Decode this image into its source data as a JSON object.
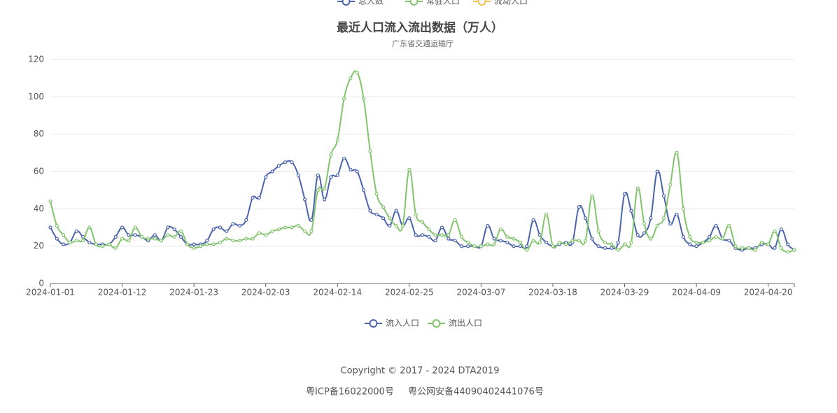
{
  "top_legend": {
    "items": [
      {
        "name": "总人数",
        "color": "#4b64ad"
      },
      {
        "name": "常驻人口",
        "color": "#82c56c"
      },
      {
        "name": "流动人口",
        "color": "#f2c14e"
      }
    ]
  },
  "chart_data": {
    "type": "line",
    "title": "最近人口流入流出数据（万人）",
    "subtitle": "广东省交通运输厅",
    "categories": [
      "2024-01-01",
      null,
      null,
      null,
      null,
      null,
      null,
      null,
      null,
      null,
      null,
      "2024-01-12",
      null,
      null,
      null,
      null,
      null,
      null,
      null,
      null,
      null,
      null,
      "2024-01-23",
      null,
      null,
      null,
      null,
      null,
      null,
      null,
      null,
      null,
      null,
      "2024-02-03",
      null,
      null,
      null,
      null,
      null,
      null,
      null,
      null,
      null,
      null,
      "2024-02-14",
      null,
      null,
      null,
      null,
      null,
      null,
      null,
      null,
      null,
      null,
      "2024-02-25",
      null,
      null,
      null,
      null,
      null,
      null,
      null,
      null,
      null,
      null,
      "2024-03-07",
      null,
      null,
      null,
      null,
      null,
      null,
      null,
      null,
      null,
      null,
      "2024-03-18",
      null,
      null,
      null,
      null,
      null,
      null,
      null,
      null,
      null,
      null,
      "2024-03-29",
      null,
      null,
      null,
      null,
      null,
      null,
      null,
      null,
      null,
      null,
      "2024-04-09",
      null,
      null,
      null,
      null,
      null,
      null,
      null,
      null,
      null,
      null,
      "2024-04-20",
      null,
      null,
      null,
      null
    ],
    "series": [
      {
        "name": "流入人口",
        "color": "#4b64ad",
        "values": [
          30,
          24,
          21,
          22,
          28,
          25,
          22,
          21,
          21,
          21,
          25,
          30,
          26,
          26,
          25,
          23,
          26,
          23,
          30,
          29,
          25,
          21,
          21,
          21,
          23,
          29,
          30,
          28,
          32,
          31,
          34,
          46,
          46,
          57,
          60,
          63,
          65,
          65,
          58,
          45,
          34,
          58,
          45,
          57,
          58,
          67,
          61,
          60,
          50,
          39,
          37,
          35,
          31,
          39,
          31,
          35,
          26,
          26,
          25,
          23,
          30,
          24,
          23,
          20,
          20,
          20,
          20,
          31,
          24,
          23,
          22,
          20,
          20,
          20,
          34,
          26,
          22,
          20,
          21,
          22,
          22,
          41,
          35,
          24,
          20,
          19,
          19,
          22,
          48,
          39,
          26,
          27,
          35,
          60,
          47,
          32,
          37,
          25,
          21,
          20,
          22,
          25,
          31,
          24,
          23,
          19,
          18,
          19,
          19,
          21,
          21,
          19,
          29,
          21,
          18
        ]
      },
      {
        "name": "流出人口",
        "color": "#82c56c",
        "values": [
          44,
          31,
          26,
          22,
          23,
          23,
          30,
          21,
          20,
          21,
          19,
          24,
          23,
          30,
          25,
          24,
          24,
          23,
          26,
          25,
          28,
          21,
          19,
          20,
          21,
          21,
          22,
          24,
          23,
          23,
          24,
          24,
          27,
          26,
          28,
          29,
          30,
          30,
          31,
          28,
          28,
          50,
          51,
          69,
          77,
          99,
          110,
          113,
          99,
          71,
          48,
          41,
          35,
          31,
          31,
          61,
          37,
          33,
          29,
          26,
          26,
          26,
          34,
          25,
          22,
          20,
          20,
          21,
          21,
          29,
          25,
          24,
          22,
          18,
          23,
          22,
          37,
          20,
          22,
          21,
          23,
          23,
          23,
          47,
          28,
          22,
          21,
          18,
          21,
          22,
          51,
          32,
          24,
          31,
          35,
          53,
          70,
          40,
          25,
          22,
          22,
          23,
          25,
          24,
          31,
          20,
          19,
          19,
          18,
          22,
          21,
          28,
          19,
          17,
          18
        ]
      }
    ],
    "ylim": [
      0,
      120
    ],
    "yticks": [
      0,
      20,
      40,
      60,
      80,
      100,
      120
    ],
    "grid": true,
    "legend": "bottom"
  },
  "footer": {
    "copyright": "Copyright © 2017 - 2024  DTA2019",
    "icp": "粤ICP备16022000号",
    "police": "粤公网安备44090402441076号"
  }
}
